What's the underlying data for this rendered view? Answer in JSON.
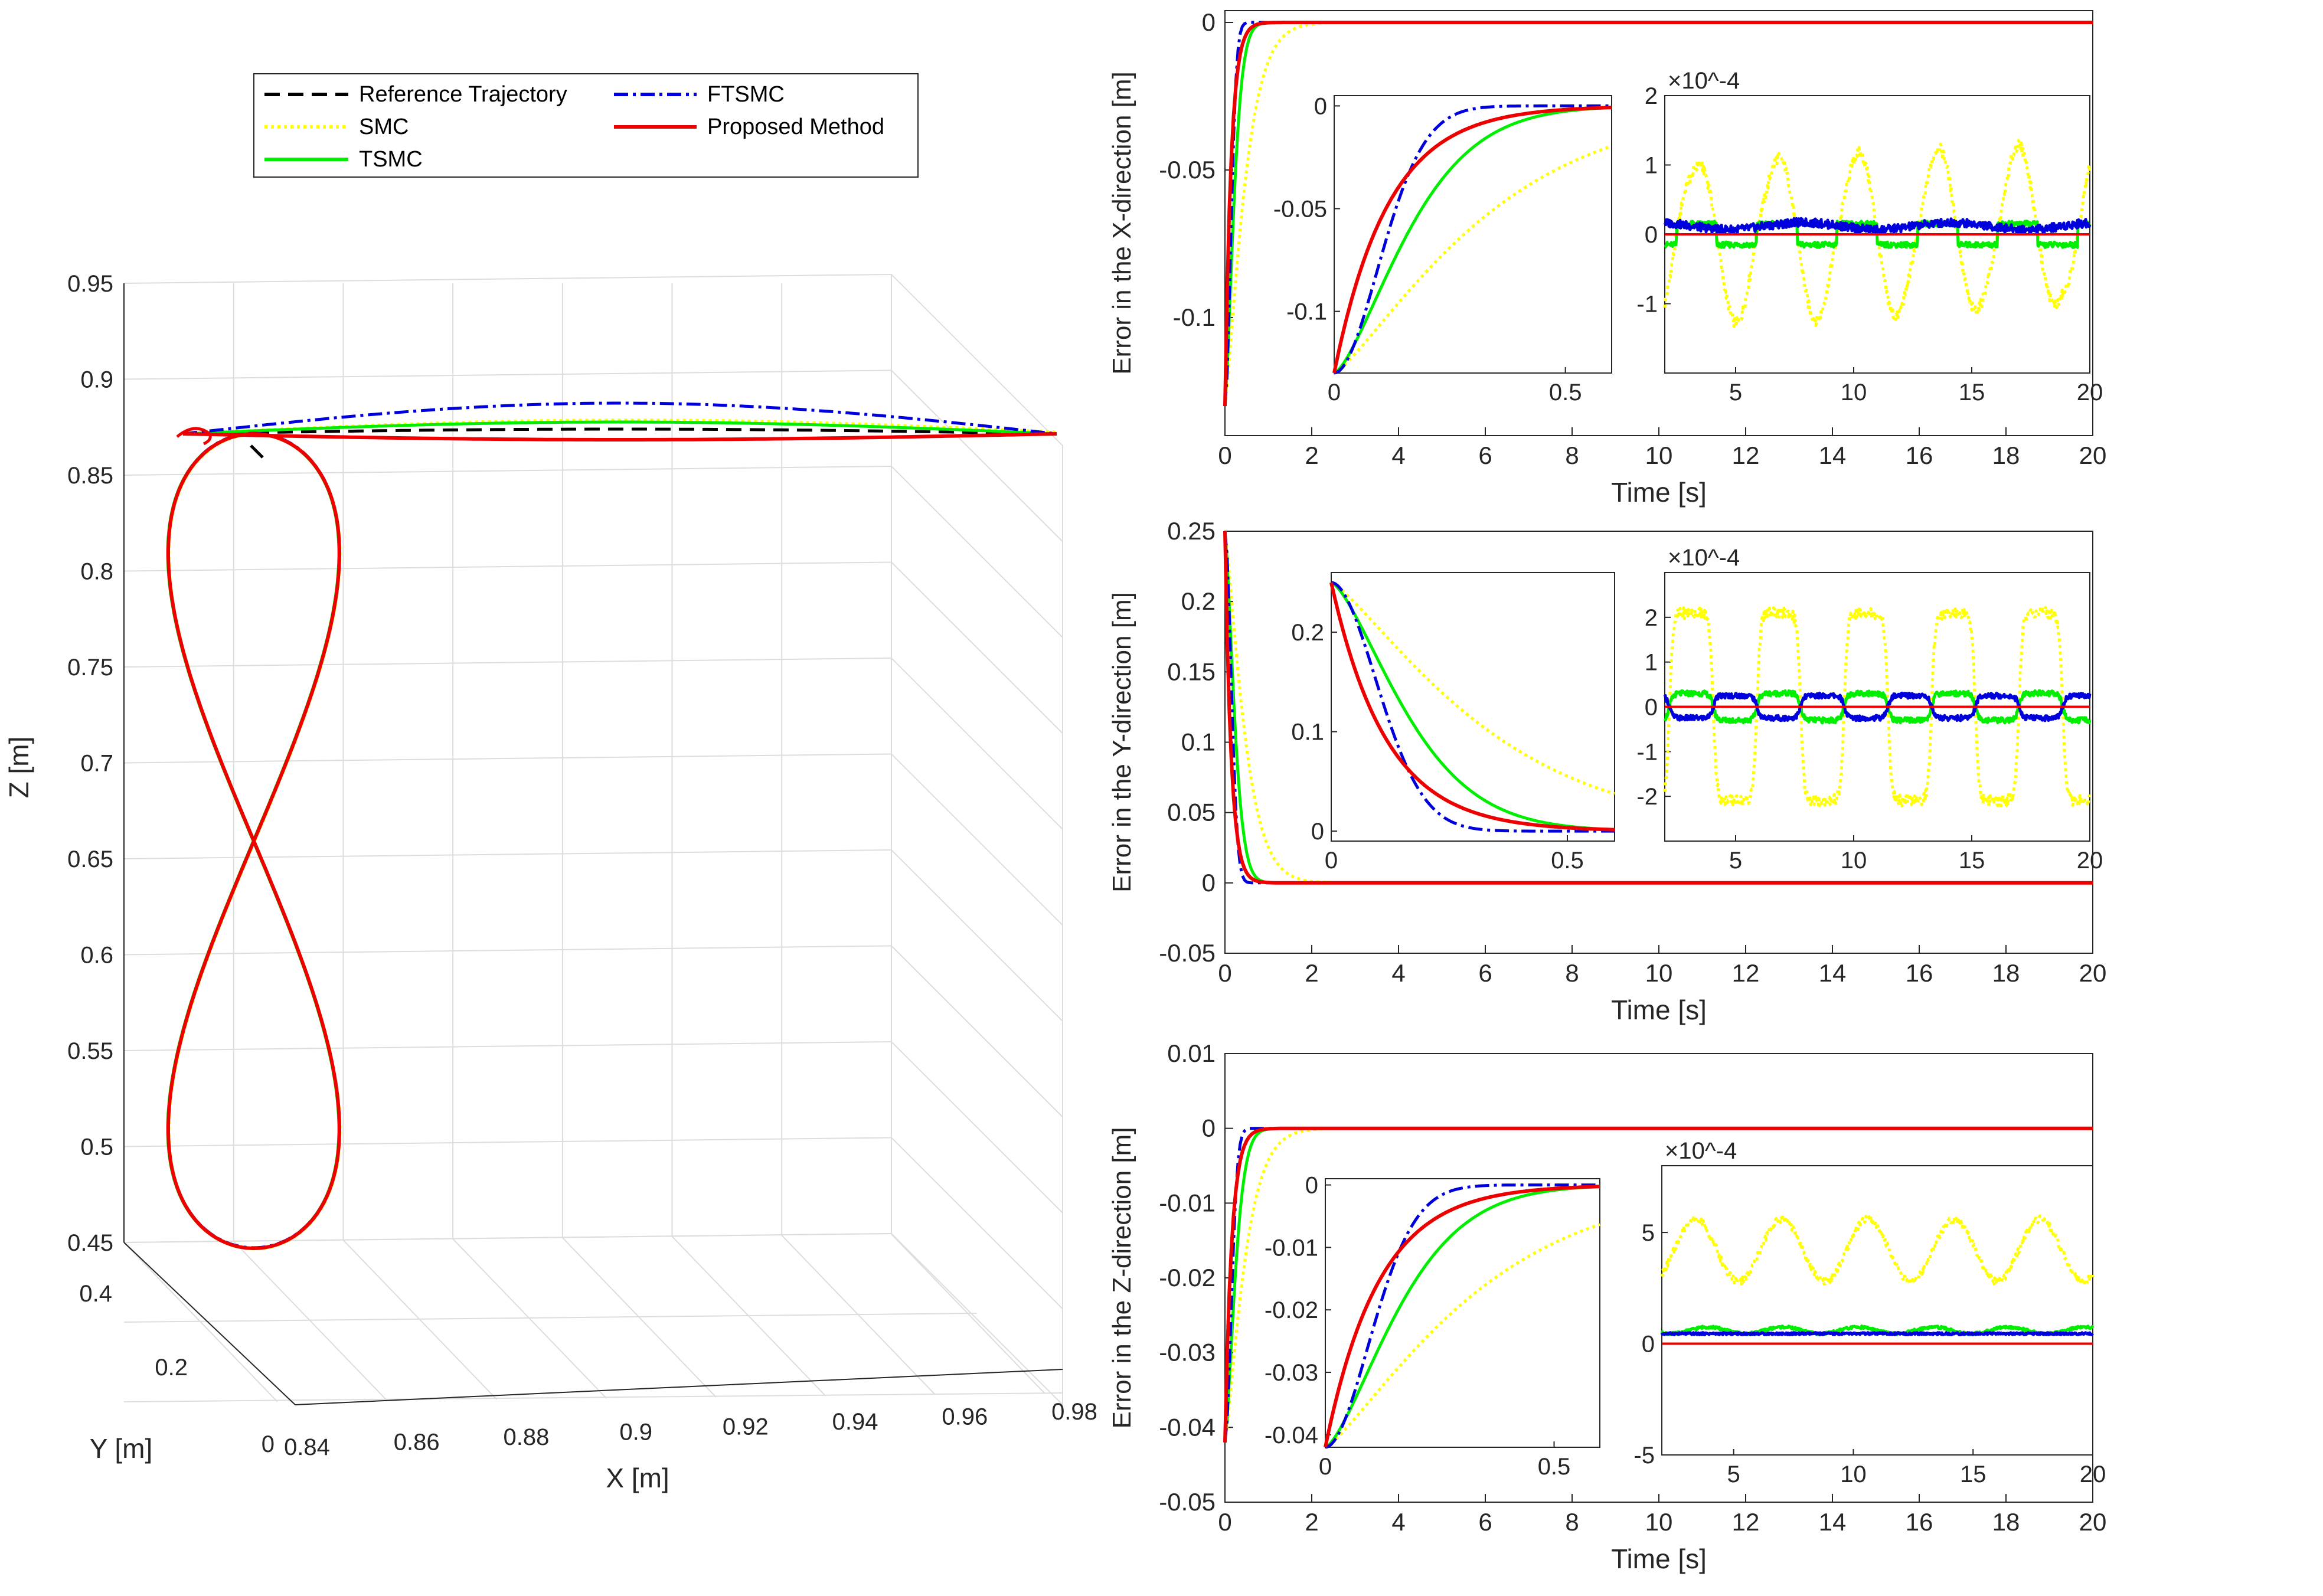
{
  "colors": {
    "ref": "#000000",
    "smc": "#ffff00",
    "tsmc": "#00ee00",
    "ftsmc": "#0000dd",
    "proposed": "#ee0000",
    "grid": "#dddddd",
    "axis": "#262626"
  },
  "legend": {
    "ref": "Reference Trajectory",
    "smc": "SMC",
    "tsmc": "TSMC",
    "ftsmc": "FTSMC",
    "proposed": "Proposed Method"
  },
  "chart_data": [
    {
      "id": "traj3d",
      "type": "line",
      "projection": "3d",
      "xlabel": "X [m]",
      "ylabel": "Y [m]",
      "zlabel": "Z [m]",
      "xlim": [
        0.84,
        0.98
      ],
      "ylim": [
        0,
        0.4
      ],
      "zlim": [
        0.45,
        0.95
      ],
      "xticks": [
        "0.84",
        "0.86",
        "0.88",
        "0.9",
        "0.92",
        "0.94",
        "0.96",
        "0.98"
      ],
      "yticks": [
        "0",
        "0.2",
        "0.4"
      ],
      "zticks": [
        "0.45",
        "0.5",
        "0.55",
        "0.6",
        "0.65",
        "0.7",
        "0.75",
        "0.8",
        "0.85",
        "0.9",
        "0.95"
      ],
      "grid": true,
      "legend_position": "top"
    },
    {
      "id": "ex",
      "type": "line",
      "xlabel": "Time [s]",
      "ylabel": "Error in the X-direction [m]",
      "xlim": [
        0,
        20
      ],
      "ylim": [
        -0.14,
        0.004
      ],
      "xticks": [
        "0",
        "2",
        "4",
        "6",
        "8",
        "10",
        "12",
        "14",
        "16",
        "18",
        "20"
      ],
      "yticks": [
        "-0.1",
        "-0.05",
        "0"
      ],
      "initial_error": -0.13,
      "settle_time": {
        "smc": 1.1,
        "tsmc": 0.7,
        "ftsmc": 0.55,
        "proposed": 0.5
      },
      "inset_transient": {
        "xlim": [
          0,
          0.6
        ],
        "xticks": [
          "0",
          "0.5"
        ],
        "ylim": [
          -0.13,
          0.005
        ],
        "yticks": [
          "-0.1",
          "-0.05",
          "0"
        ]
      },
      "inset_steady": {
        "xlim": [
          2,
          20
        ],
        "xticks": [
          "5",
          "10",
          "15",
          "20"
        ],
        "ylim": [
          -2,
          2
        ],
        "yticks": [
          "-1",
          "0",
          "1",
          "2"
        ],
        "exponent": "×10^-4"
      }
    },
    {
      "id": "ey",
      "type": "line",
      "xlabel": "Time [s]",
      "ylabel": "Error in the Y-direction [m]",
      "xlim": [
        0,
        20
      ],
      "ylim": [
        -0.05,
        0.25
      ],
      "xticks": [
        "0",
        "2",
        "4",
        "6",
        "8",
        "10",
        "12",
        "14",
        "16",
        "18",
        "20"
      ],
      "yticks": [
        "-0.05",
        "0",
        "0.05",
        "0.1",
        "0.15",
        "0.2",
        "0.25"
      ],
      "initial_error": 0.25,
      "settle_time": {
        "smc": 1.1,
        "tsmc": 0.75,
        "ftsmc": 0.6,
        "proposed": 0.5
      },
      "inset_transient": {
        "xlim": [
          0,
          0.6
        ],
        "xticks": [
          "0",
          "0.5"
        ],
        "ylim": [
          -0.01,
          0.26
        ],
        "yticks": [
          "0",
          "0.1",
          "0.2"
        ]
      },
      "inset_steady": {
        "xlim": [
          2,
          20
        ],
        "xticks": [
          "5",
          "10",
          "15",
          "20"
        ],
        "ylim": [
          -3,
          3
        ],
        "yticks": [
          "-2",
          "-1",
          "0",
          "1",
          "2"
        ],
        "exponent": "×10^-4"
      }
    },
    {
      "id": "ez",
      "type": "line",
      "xlabel": "Time [s]",
      "ylabel": "Error in the Z-direction [m]",
      "xlim": [
        0,
        20
      ],
      "ylim": [
        -0.05,
        0.01
      ],
      "xticks": [
        "0",
        "2",
        "4",
        "6",
        "8",
        "10",
        "12",
        "14",
        "16",
        "18",
        "20"
      ],
      "yticks": [
        "-0.05",
        "-0.04",
        "-0.03",
        "-0.02",
        "-0.01",
        "0",
        "0.01"
      ],
      "initial_error": -0.042,
      "settle_time": {
        "smc": 1.1,
        "tsmc": 0.8,
        "ftsmc": 0.6,
        "proposed": 0.55
      },
      "inset_transient": {
        "xlim": [
          0,
          0.6
        ],
        "xticks": [
          "0",
          "0.5"
        ],
        "ylim": [
          -0.042,
          0.001
        ],
        "yticks": [
          "-0.04",
          "-0.03",
          "-0.02",
          "-0.01",
          "0"
        ]
      },
      "inset_steady": {
        "xlim": [
          2,
          20
        ],
        "xticks": [
          "5",
          "10",
          "15",
          "20"
        ],
        "ylim": [
          -5,
          8
        ],
        "yticks": [
          "-5",
          "0",
          "5"
        ],
        "exponent": "×10^-4"
      }
    }
  ]
}
